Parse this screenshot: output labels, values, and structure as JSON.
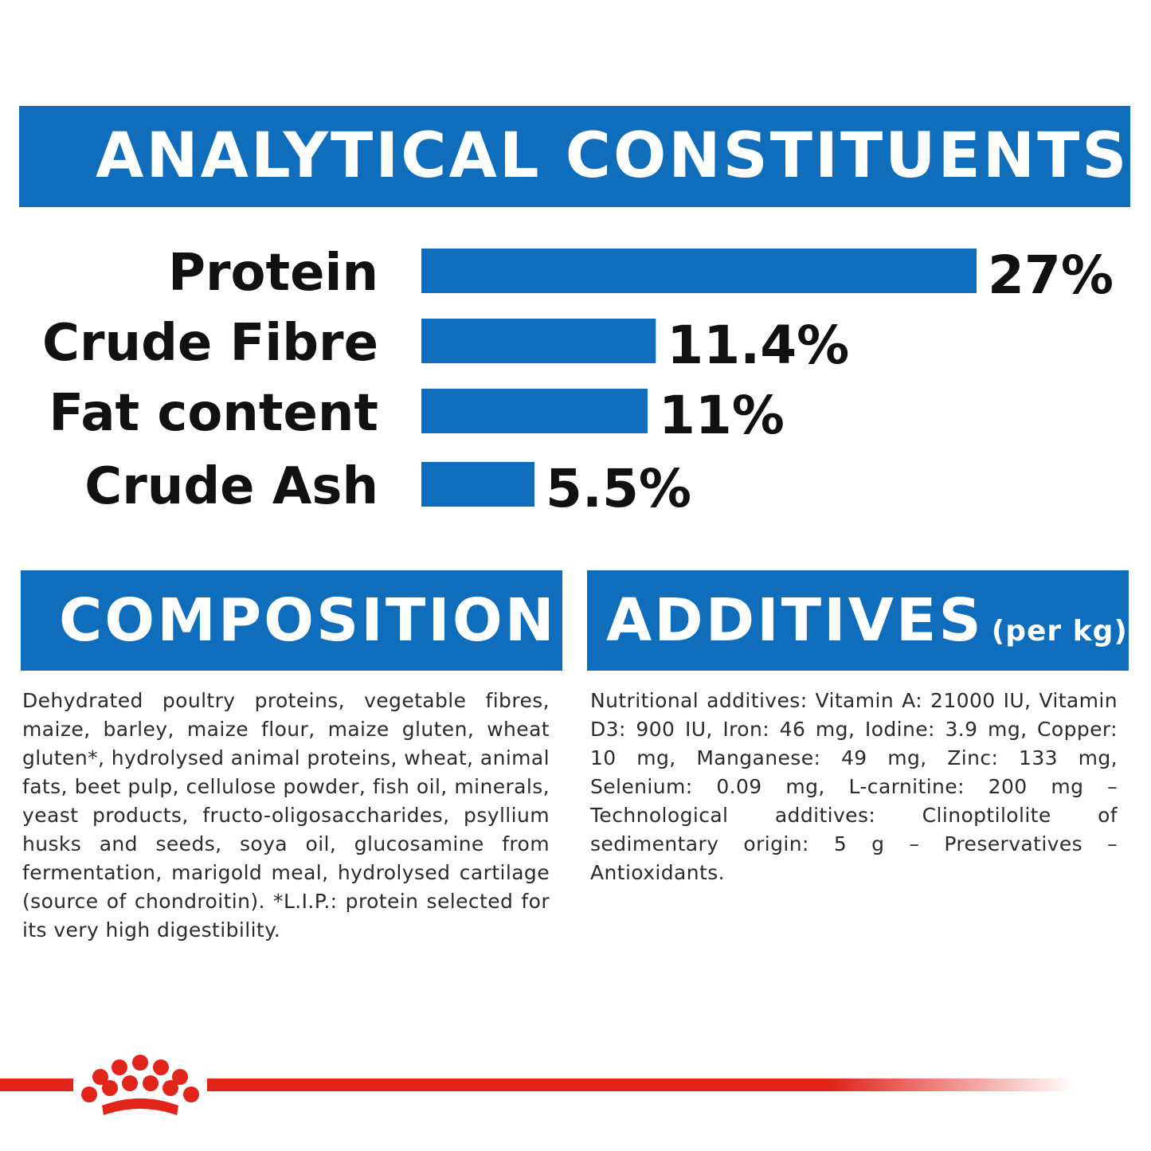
{
  "analytical": {
    "title": "ANALYTICAL CONSTITUENTS"
  },
  "chart_data": {
    "type": "bar",
    "orientation": "horizontal",
    "categories": [
      "Protein",
      "Crude Fibre",
      "Fat content",
      "Crude Ash"
    ],
    "values": [
      27,
      11.4,
      11,
      5.5
    ],
    "value_labels": [
      "27%",
      "11.4%",
      "11%",
      "5.5%"
    ],
    "unit": "%",
    "xlim": [
      0,
      27
    ],
    "grid": false,
    "legend": "none",
    "bar_color": "#0f6dbb"
  },
  "composition": {
    "title": "COMPOSITION",
    "text": "Dehydrated poultry proteins, vegetable fibres, maize, barley, maize flour, maize gluten, wheat gluten*, hydrolysed animal proteins, wheat, animal fats, beet pulp, cellulose powder, fish oil, minerals, yeast products, fructo-oligosaccharides, psyllium husks and seeds, soya oil, glucosamine from fermentation, marigold meal, hydrolysed cartilage (source of chondroitin). *L.I.P.: protein selected for its very high digestibility."
  },
  "additives": {
    "title": "ADDITIVES",
    "subtitle": "(per kg)",
    "text": "Nutritional additives: Vitamin A: 21000 IU, Vitamin D3: 900 IU, Iron: 46 mg, Iodine: 3.9 mg, Copper: 10 mg, Manganese: 49 mg, Zinc: 133 mg, Selenium: 0.09 mg, L-carnitine: 200 mg – Technological additives: Clinoptilolite of sedimentary origin: 5 g – Preservatives – Antioxidants."
  },
  "colors": {
    "brand_blue": "#0f6dbb",
    "brand_red": "#e1251b"
  },
  "logo": {
    "icon": "crown-icon"
  }
}
